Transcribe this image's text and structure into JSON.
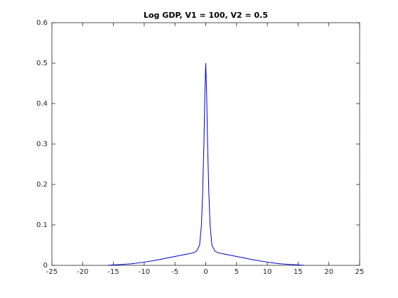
{
  "chart_data": {
    "type": "line",
    "title": "Log GDP, V1 = 100, V2 = 0.5",
    "x": [
      -16,
      -15,
      -14,
      -12,
      -10,
      -8,
      -6,
      -4,
      -3,
      -2,
      -1.5,
      -1,
      -0.7,
      -0.5,
      -0.3,
      -0.15,
      0,
      0.15,
      0.3,
      0.5,
      0.7,
      1,
      1.5,
      2,
      3,
      4,
      6,
      8,
      10,
      12,
      14,
      15,
      16
    ],
    "series": [
      {
        "color": "#0000cc",
        "values": [
          0,
          0.001,
          0.002,
          0.004,
          0.008,
          0.013,
          0.019,
          0.025,
          0.028,
          0.031,
          0.035,
          0.05,
          0.1,
          0.18,
          0.3,
          0.42,
          0.5,
          0.42,
          0.3,
          0.18,
          0.1,
          0.05,
          0.035,
          0.031,
          0.028,
          0.025,
          0.019,
          0.013,
          0.008,
          0.004,
          0.002,
          0.001,
          0
        ]
      }
    ],
    "xlim": [
      -25,
      25
    ],
    "xticks": [
      -25,
      -20,
      -15,
      -10,
      -5,
      0,
      5,
      10,
      15,
      20,
      25
    ],
    "ylim": [
      0,
      0.6
    ],
    "yticks": [
      0,
      0.1,
      0.2,
      0.3,
      0.4,
      0.5,
      0.6
    ]
  }
}
